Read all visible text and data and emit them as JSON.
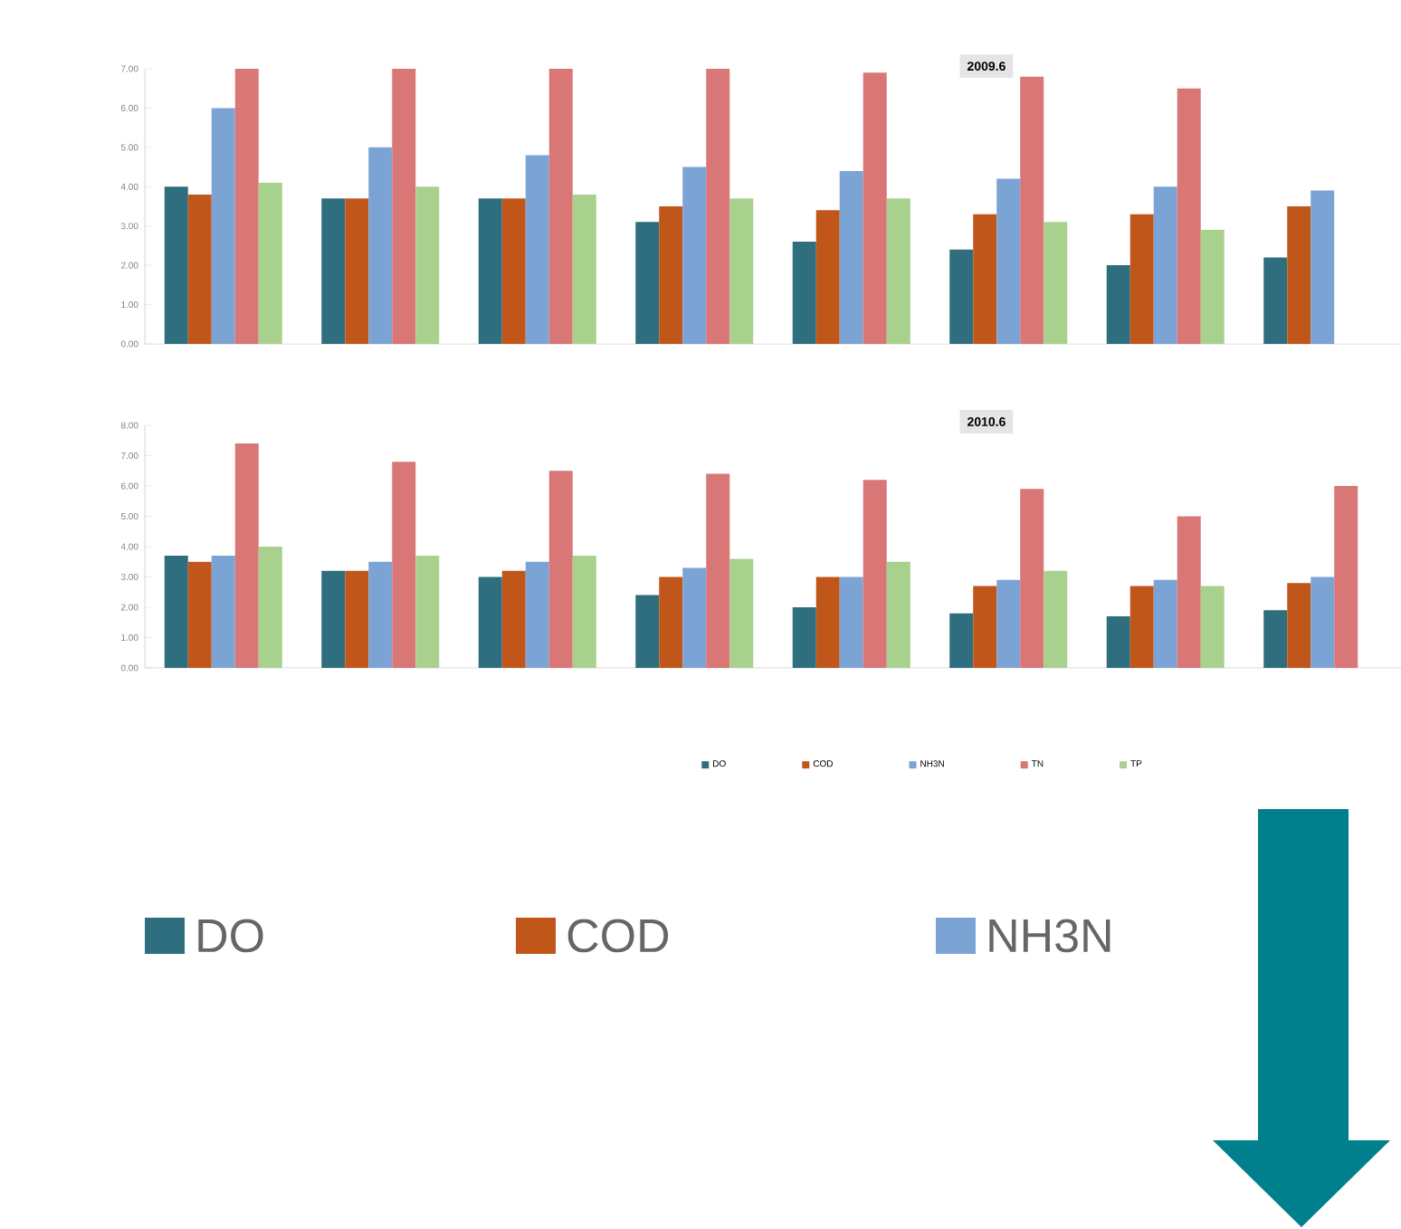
{
  "chart_data": [
    {
      "type": "bar",
      "title": "2009.6",
      "categories": [
        null,
        null,
        null,
        null,
        null,
        null,
        null,
        null
      ],
      "series": [
        {
          "name": "DO",
          "color": "#2e6e7e",
          "values": [
            4.0,
            3.7,
            3.7,
            3.1,
            2.6,
            2.4,
            2.0,
            2.2
          ]
        },
        {
          "name": "COD",
          "color": "#c0561a",
          "values": [
            3.8,
            3.7,
            3.7,
            3.5,
            3.4,
            3.3,
            3.3,
            3.5
          ]
        },
        {
          "name": "NH3N",
          "color": "#7ba3d4",
          "values": [
            6.0,
            5.0,
            4.8,
            4.5,
            4.4,
            4.2,
            4.0,
            3.9
          ]
        },
        {
          "color": "#d97777",
          "values": [
            7.0,
            7.0,
            7.0,
            7.0,
            6.9,
            6.8,
            6.5,
            null
          ]
        },
        {
          "color": "#a9d18e",
          "values": [
            4.1,
            4.0,
            3.8,
            3.7,
            3.7,
            3.1,
            2.9,
            null
          ]
        }
      ],
      "ylim": [
        0,
        7
      ],
      "yticks": [
        {
          "value": 0,
          "label": "0.00"
        },
        {
          "value": 1,
          "label": "1.00"
        },
        {
          "value": 2,
          "label": "2.00"
        },
        {
          "value": 3,
          "label": "3.00"
        },
        {
          "value": 4,
          "label": "4.00"
        },
        {
          "value": 5,
          "label": "5.00"
        },
        {
          "value": 6,
          "label": "6.00"
        },
        {
          "value": 7,
          "label": "7.00"
        }
      ],
      "legend": "bottom"
    },
    {
      "type": "bar",
      "title": "2010.6",
      "categories": [
        null,
        null,
        null,
        null,
        null,
        null,
        null,
        null
      ],
      "series": [
        {
          "name": "DO",
          "color": "#2e6e7e",
          "values": [
            3.7,
            3.2,
            3.0,
            2.4,
            2.0,
            1.8,
            1.7,
            1.9
          ]
        },
        {
          "name": "COD",
          "color": "#c0561a",
          "values": [
            3.5,
            3.2,
            3.2,
            3.0,
            3.0,
            2.7,
            2.7,
            2.8
          ]
        },
        {
          "name": "NH3N",
          "color": "#7ba3d4",
          "values": [
            3.7,
            3.5,
            3.5,
            3.3,
            3.0,
            2.9,
            2.9,
            3.0
          ]
        },
        {
          "name": "TN",
          "color": "#d97777",
          "values": [
            7.4,
            6.8,
            6.5,
            6.4,
            6.2,
            5.9,
            5.0,
            6.0
          ]
        },
        {
          "name": "TP",
          "color": "#a9d18e",
          "values": [
            4.0,
            3.7,
            3.7,
            3.6,
            3.5,
            3.2,
            2.7,
            null
          ]
        }
      ],
      "ylim": [
        0,
        8
      ],
      "yticks": [
        {
          "value": 0,
          "label": "0.00"
        },
        {
          "value": 1,
          "label": "1.00"
        },
        {
          "value": 2,
          "label": "2.00"
        },
        {
          "value": 3,
          "label": "3.00"
        },
        {
          "value": 4,
          "label": "4.00"
        },
        {
          "value": 5,
          "label": "5.00"
        },
        {
          "value": 6,
          "label": "6.00"
        },
        {
          "value": 7,
          "label": "7.00"
        },
        {
          "value": 8,
          "label": "8.00"
        }
      ],
      "legend": "bottom"
    }
  ]
}
